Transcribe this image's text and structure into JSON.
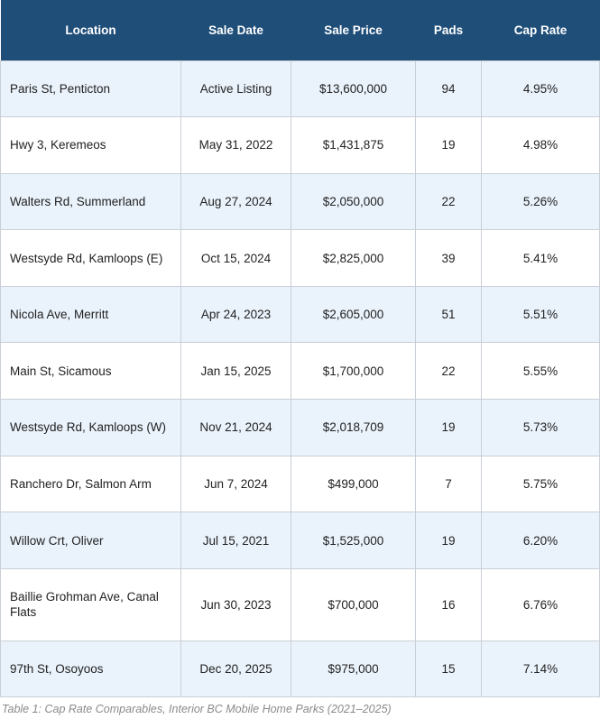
{
  "table": {
    "headers": [
      "Location",
      "Sale Date",
      "Sale Price",
      "Pads",
      "Cap Rate"
    ],
    "rows": [
      {
        "location": "Paris St, Penticton",
        "sale_date": "Active Listing",
        "sale_price": "$13,600,000",
        "pads": "94",
        "cap_rate": "4.95%"
      },
      {
        "location": "Hwy 3, Keremeos",
        "sale_date": "May 31, 2022",
        "sale_price": "$1,431,875",
        "pads": "19",
        "cap_rate": "4.98%"
      },
      {
        "location": "Walters Rd, Summerland",
        "sale_date": "Aug 27, 2024",
        "sale_price": "$2,050,000",
        "pads": "22",
        "cap_rate": "5.26%"
      },
      {
        "location": "Westsyde Rd, Kamloops (E)",
        "sale_date": "Oct 15, 2024",
        "sale_price": "$2,825,000",
        "pads": "39",
        "cap_rate": "5.41%"
      },
      {
        "location": "Nicola Ave, Merritt",
        "sale_date": "Apr 24, 2023",
        "sale_price": "$2,605,000",
        "pads": "51",
        "cap_rate": "5.51%"
      },
      {
        "location": "Main St, Sicamous",
        "sale_date": "Jan 15, 2025",
        "sale_price": "$1,700,000",
        "pads": "22",
        "cap_rate": "5.55%"
      },
      {
        "location": "Westsyde Rd, Kamloops (W)",
        "sale_date": "Nov 21, 2024",
        "sale_price": "$2,018,709",
        "pads": "19",
        "cap_rate": "5.73%"
      },
      {
        "location": "Ranchero Dr, Salmon Arm",
        "sale_date": "Jun 7, 2024",
        "sale_price": "$499,000",
        "pads": "7",
        "cap_rate": "5.75%"
      },
      {
        "location": "Willow Crt, Oliver",
        "sale_date": "Jul 15, 2021",
        "sale_price": "$1,525,000",
        "pads": "19",
        "cap_rate": "6.20%"
      },
      {
        "location": "Baillie Grohman Ave, Canal Flats",
        "sale_date": "Jun 30, 2023",
        "sale_price": "$700,000",
        "pads": "16",
        "cap_rate": "6.76%"
      },
      {
        "location": "97th St, Osoyoos",
        "sale_date": "Dec 20, 2025",
        "sale_price": "$975,000",
        "pads": "15",
        "cap_rate": "7.14%"
      }
    ]
  },
  "caption": "Table 1: Cap Rate Comparables, Interior BC Mobile Home Parks (2021–2025)",
  "colors": {
    "header_bg": "#1f4e79",
    "header_text": "#ffffff",
    "alt_row_bg": "#eaf2fb",
    "border": "#c9cfd6",
    "caption_text": "#8a8a8a"
  }
}
